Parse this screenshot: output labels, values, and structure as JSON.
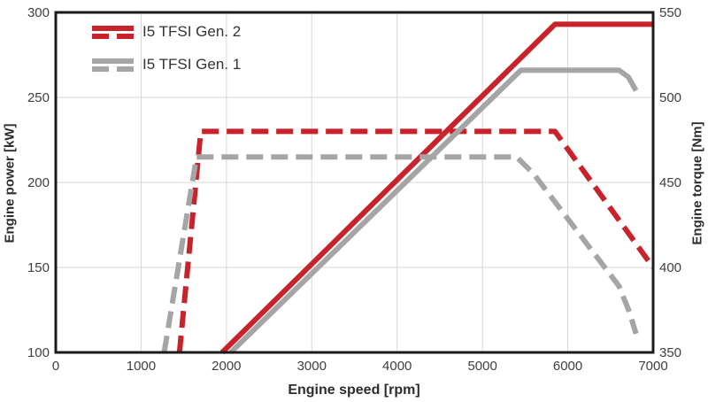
{
  "chart_data": {
    "type": "line",
    "title": "",
    "xlabel": "Engine speed [rpm]",
    "ylabel_left": "Engine power [kW]",
    "ylabel_right": "Engine torque [Nm]",
    "xlim": [
      0,
      7000
    ],
    "ylim_left": [
      100,
      300
    ],
    "ylim_right": [
      350,
      550
    ],
    "x_ticks": [
      0,
      1000,
      2000,
      3000,
      4000,
      5000,
      6000,
      7000
    ],
    "y_left_ticks": [
      100,
      150,
      200,
      250,
      300
    ],
    "y_right_ticks": [
      350,
      400,
      450,
      500,
      550
    ],
    "grid": true,
    "legend_position": "top-left",
    "colors": {
      "gen2_red": "#c8232a",
      "gen1_gray": "#a5a5a6",
      "grid": "#d7d7d7",
      "frame": "#1b1b1b"
    },
    "series": [
      {
        "name": "I5 TFSI Gen. 2 power",
        "axis": "left",
        "unit": "kW",
        "style": "solid",
        "color": "#c8232a",
        "points": [
          [
            1950,
            100
          ],
          [
            5850,
            293
          ],
          [
            7000,
            293
          ]
        ]
      },
      {
        "name": "I5 TFSI Gen. 2 torque",
        "axis": "right",
        "unit": "Nm",
        "style": "dashed",
        "color": "#c8232a",
        "points": [
          [
            1450,
            350
          ],
          [
            1700,
            480
          ],
          [
            5850,
            480
          ],
          [
            7000,
            400
          ]
        ]
      },
      {
        "name": "I5 TFSI Gen. 1 power",
        "axis": "left",
        "unit": "kW",
        "style": "solid",
        "color": "#a5a5a6",
        "points": [
          [
            2050,
            100
          ],
          [
            5450,
            266
          ],
          [
            6600,
            266
          ],
          [
            6710,
            262
          ],
          [
            6800,
            254
          ]
        ]
      },
      {
        "name": "I5 TFSI Gen. 1 torque",
        "axis": "right",
        "unit": "Nm",
        "style": "dashed",
        "color": "#a5a5a6",
        "points": [
          [
            1270,
            350
          ],
          [
            1650,
            465
          ],
          [
            5400,
            465
          ],
          [
            5600,
            455
          ],
          [
            6600,
            389
          ],
          [
            6720,
            374
          ],
          [
            6800,
            361
          ]
        ]
      }
    ],
    "legend": [
      {
        "label": "I5 TFSI Gen. 2",
        "color": "#c8232a"
      },
      {
        "label": "I5 TFSI Gen. 1",
        "color": "#a5a5a6"
      }
    ]
  }
}
